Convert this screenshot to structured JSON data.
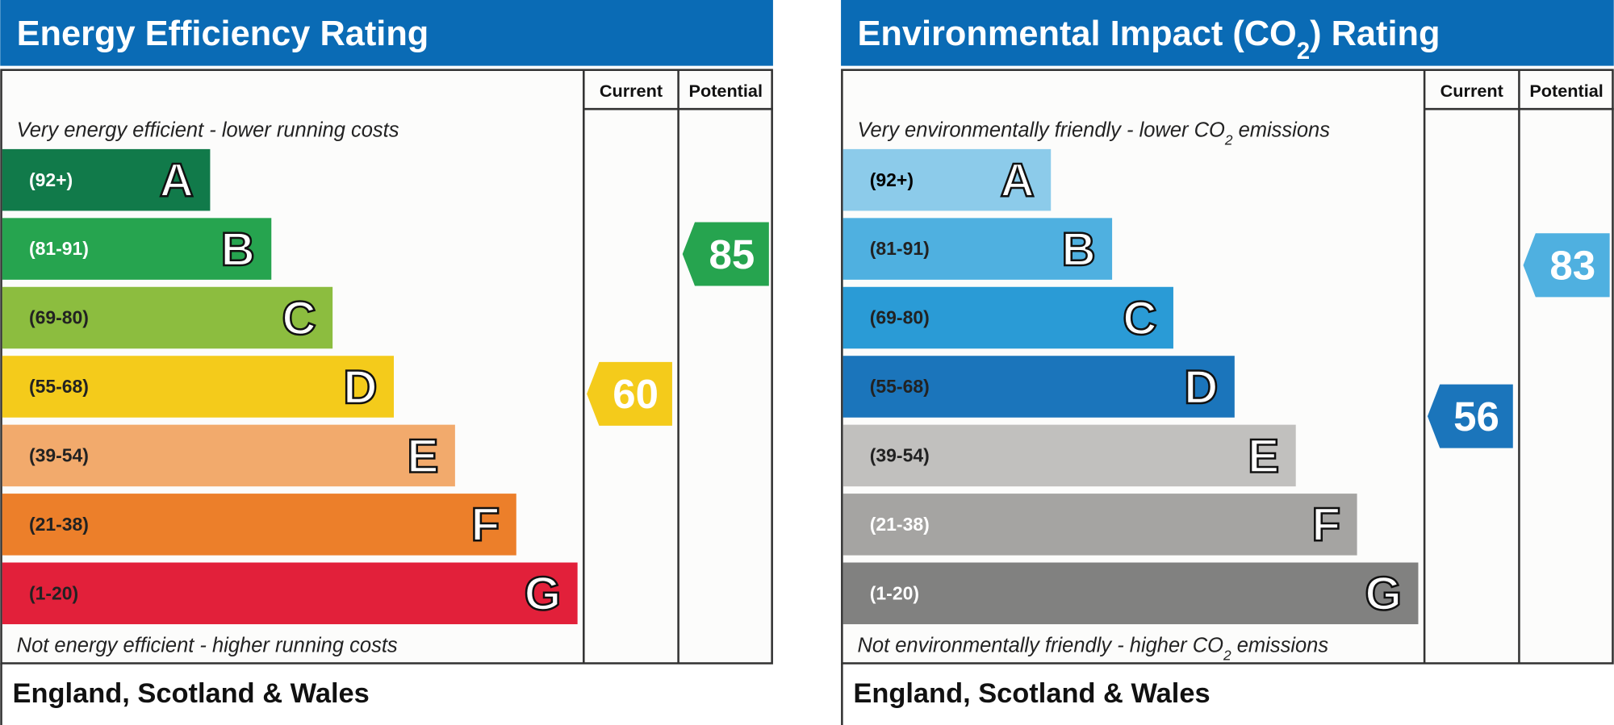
{
  "panels": [
    {
      "title": [
        "Energy Efficiency Rating"
      ],
      "columns": [
        "Current",
        "Potential"
      ],
      "top_note": [
        "Very energy efficient - lower running costs"
      ],
      "bottom_note": [
        "Not energy efficient - higher running costs"
      ],
      "bands": [
        {
          "range": "(92+)",
          "letter": "A",
          "color": "#117a4a",
          "label_color": "#ffffff"
        },
        {
          "range": "(81-91)",
          "letter": "B",
          "color": "#26a44f",
          "label_color": "#ffffff"
        },
        {
          "range": "(69-80)",
          "letter": "C",
          "color": "#8cbd3f",
          "label_color": "#222222"
        },
        {
          "range": "(55-68)",
          "letter": "D",
          "color": "#f4cb1b",
          "label_color": "#222222"
        },
        {
          "range": "(39-54)",
          "letter": "E",
          "color": "#f2aa6c",
          "label_color": "#222222"
        },
        {
          "range": "(21-38)",
          "letter": "F",
          "color": "#ec7f2a",
          "label_color": "#222222"
        },
        {
          "range": "(1-20)",
          "letter": "G",
          "color": "#e2203a",
          "label_color": "#222222"
        }
      ],
      "current": 60,
      "current_color": "#f4cb1b",
      "potential": 85,
      "potential_color": "#26a44f",
      "footer": "England, Scotland & Wales"
    },
    {
      "title": [
        "Environmental Impact (CO",
        "2",
        ") Rating"
      ],
      "columns": [
        "Current",
        "Potential"
      ],
      "top_note": [
        "Very environmentally friendly - lower CO",
        "2",
        " emissions"
      ],
      "bottom_note": [
        "Not environmentally friendly - higher CO",
        "2",
        " emissions"
      ],
      "bands": [
        {
          "range": "(92+)",
          "letter": "A",
          "color": "#8ccbea",
          "label_color": "#000000"
        },
        {
          "range": "(81-91)",
          "letter": "B",
          "color": "#4fb0e0",
          "label_color": "#222222"
        },
        {
          "range": "(69-80)",
          "letter": "C",
          "color": "#2a9bd6",
          "label_color": "#222222"
        },
        {
          "range": "(55-68)",
          "letter": "D",
          "color": "#1b75bb",
          "label_color": "#222222"
        },
        {
          "range": "(39-54)",
          "letter": "E",
          "color": "#c1c0be",
          "label_color": "#222222"
        },
        {
          "range": "(21-38)",
          "letter": "F",
          "color": "#a5a4a2",
          "label_color": "#ffffff"
        },
        {
          "range": "(1-20)",
          "letter": "G",
          "color": "#818180",
          "label_color": "#ffffff"
        }
      ],
      "current": 56,
      "current_color": "#1b75bb",
      "potential": 83,
      "potential_color": "#4fb0e0",
      "footer": "England, Scotland & Wales"
    }
  ]
}
